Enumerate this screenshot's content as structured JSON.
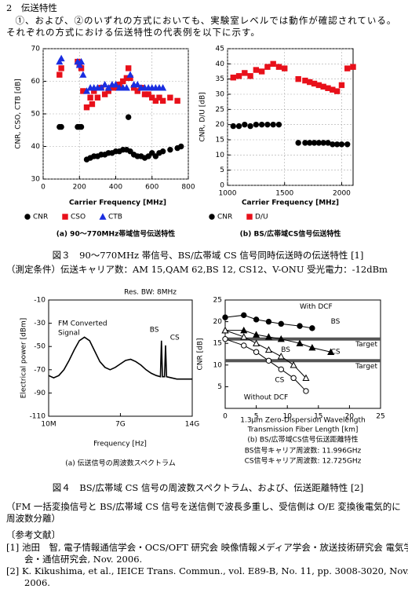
{
  "header": {
    "section": "2　伝送特性",
    "paragraph": "①、および、②のいずれの方式においても、実験室レベルでは動作が確認されている。それぞれの方式における伝送特性の代表例を以下に示す。"
  },
  "chart_data": [
    {
      "type": "scatter",
      "caption": "(a) 90〜770MHz帯域信号伝送特性",
      "xlabel": "Carrier Frequency [MHz]",
      "ylabel": "CNR, CSO, CTB [dB]",
      "xlim": [
        0,
        800
      ],
      "ylim": [
        30,
        70
      ],
      "xticks": [
        0,
        200,
        400,
        600,
        800
      ],
      "yticks": [
        30,
        40,
        50,
        60,
        70
      ],
      "grid": true,
      "series": [
        {
          "name": "CNR",
          "color": "#000000",
          "marker": "circle",
          "x": [
            90,
            100,
            190,
            200,
            210,
            240,
            260,
            280,
            300,
            320,
            340,
            360,
            380,
            400,
            420,
            440,
            460,
            470,
            480,
            500,
            520,
            540,
            560,
            580,
            600,
            620,
            640,
            660,
            700,
            740,
            760
          ],
          "values": [
            46,
            46,
            46,
            46,
            46,
            36,
            36.5,
            37,
            37,
            37.5,
            37.5,
            38,
            38,
            38.5,
            38.5,
            39,
            39,
            49,
            38.5,
            37.5,
            37,
            37,
            36.5,
            37,
            38,
            37,
            38,
            38.5,
            39,
            39.5,
            40
          ]
        },
        {
          "name": "CSO",
          "color": "#e8101a",
          "marker": "square",
          "x": [
            90,
            100,
            190,
            200,
            210,
            220,
            240,
            260,
            270,
            280,
            300,
            320,
            340,
            360,
            380,
            400,
            420,
            440,
            460,
            470,
            480,
            500,
            520,
            540,
            560,
            580,
            600,
            620,
            640,
            660,
            700,
            740
          ],
          "values": [
            62,
            64,
            66,
            65,
            64,
            57,
            52,
            55,
            53,
            57,
            55,
            58,
            56,
            57,
            58,
            58,
            59,
            60,
            61,
            64,
            61,
            58,
            57,
            58,
            56,
            56,
            55,
            54,
            55,
            54,
            55,
            54
          ]
        },
        {
          "name": "CTB",
          "color": "#1a2ee0",
          "marker": "triangle",
          "x": [
            90,
            100,
            190,
            200,
            210,
            220,
            240,
            260,
            280,
            300,
            320,
            340,
            360,
            380,
            400,
            420,
            440,
            460,
            480,
            500,
            520,
            540,
            560,
            580,
            600,
            620,
            640,
            660
          ],
          "values": [
            66,
            67,
            66,
            65,
            66,
            62,
            57,
            58,
            58,
            58,
            58,
            59,
            58,
            59,
            59,
            58,
            58,
            58,
            62,
            59,
            59,
            58,
            58,
            58,
            58,
            58,
            58,
            58
          ]
        }
      ]
    },
    {
      "type": "scatter",
      "caption": "(b) BS/広帯域CS信号伝送特性",
      "xlabel": "Carrier Frequency [MHz]",
      "ylabel": "CNR, D/U [dB]",
      "xlim": [
        1000,
        2100
      ],
      "ylim": [
        0,
        45
      ],
      "xticks": [
        1000,
        1500,
        2000
      ],
      "yticks": [
        0,
        5,
        10,
        15,
        20,
        25,
        30,
        35,
        40,
        45
      ],
      "grid": true,
      "series": [
        {
          "name": "CNR",
          "color": "#000000",
          "marker": "circle",
          "x": [
            1050,
            1100,
            1150,
            1200,
            1250,
            1300,
            1350,
            1400,
            1450,
            1620,
            1680,
            1720,
            1760,
            1800,
            1840,
            1880,
            1920,
            1960,
            2000,
            2050
          ],
          "values": [
            19.5,
            19.5,
            20,
            19.5,
            20,
            20,
            20,
            20,
            20,
            14,
            14,
            14,
            14,
            14,
            14,
            14,
            13.5,
            13.5,
            13.5,
            13.5
          ]
        },
        {
          "name": "D/U",
          "color": "#e8101a",
          "marker": "square",
          "x": [
            1050,
            1100,
            1150,
            1200,
            1250,
            1300,
            1350,
            1400,
            1450,
            1500,
            1620,
            1680,
            1720,
            1760,
            1800,
            1840,
            1880,
            1920,
            1960,
            2000,
            2050,
            2100
          ],
          "values": [
            35.5,
            36,
            37,
            36,
            38,
            37.5,
            39,
            40,
            39,
            38.5,
            35,
            34.5,
            34,
            33.5,
            33,
            32.5,
            32,
            31.5,
            31,
            33,
            38.5,
            39
          ]
        }
      ]
    },
    {
      "type": "line",
      "caption": "(a) 伝送信号の周波数スペクトラム",
      "xlabel": "Frequency [Hz]",
      "ylabel": "Electrical power [dBm]",
      "annotations": [
        "Res. BW: 8MHz",
        "FM Converted",
        "Signal",
        "BS",
        "CS"
      ],
      "color": "#000000",
      "xlim": [
        0.01,
        14
      ],
      "ylim": [
        -110,
        -10
      ],
      "xticks": [
        {
          "value": 0.01,
          "label": "10M"
        },
        {
          "value": 7,
          "label": "7G"
        },
        {
          "value": 14,
          "label": "14G"
        }
      ],
      "yticks": [
        -10,
        -30,
        -50,
        -70,
        -90,
        -110
      ],
      "x": [
        0.01,
        0.5,
        1,
        1.5,
        2,
        2.5,
        3,
        3.5,
        4,
        4.5,
        5,
        5.5,
        6,
        6.5,
        7,
        7.5,
        8,
        8.5,
        9,
        9.5,
        10,
        10.5,
        10.9,
        11,
        11.1,
        11.3,
        11.4,
        11.5,
        12,
        12.5,
        13,
        13.5,
        14
      ],
      "values": [
        -75,
        -77,
        -75,
        -70,
        -62,
        -53,
        -45,
        -42,
        -45,
        -54,
        -63,
        -68,
        -70,
        -68,
        -65,
        -62,
        -61,
        -63,
        -66,
        -70,
        -73,
        -75,
        -76,
        -45,
        -76,
        -76,
        -49,
        -76,
        -77,
        -78,
        -78,
        -78,
        -78
      ]
    },
    {
      "type": "scatter",
      "caption": "(b) BS/広帯域CS信号伝送距離特性",
      "notes": [
        "BS信号キャリア周波数: 11.996GHz",
        "CS信号キャリア周波数: 12.725GHz"
      ],
      "xlabel": [
        "1.3μm Zero-Dispersion Wavelength",
        "Transmission Fiber Length [km]"
      ],
      "ylabel": "CNR [dB]",
      "annotations": [
        "With DCF",
        "BS",
        "CS",
        "BS",
        "CS",
        "Without DCF",
        "Target",
        "Target"
      ],
      "target_lines": [
        16,
        11
      ],
      "lines": true,
      "xlim": [
        0,
        25
      ],
      "ylim": [
        0,
        25
      ],
      "xticks": [
        0,
        5,
        10,
        15,
        20,
        25
      ],
      "yticks": [
        5,
        10,
        15,
        20,
        25
      ],
      "series": [
        {
          "color": "#000000",
          "marker": "circle",
          "x": [
            0,
            3,
            5,
            7,
            9,
            12,
            14
          ],
          "values": [
            21,
            21.5,
            20.5,
            20,
            19.5,
            19,
            18.5
          ]
        },
        {
          "color": "#000000",
          "marker": "triangle",
          "x": [
            0,
            3,
            5,
            7,
            9,
            12,
            14,
            17
          ],
          "values": [
            18,
            18,
            17,
            16.5,
            16,
            15,
            14,
            13
          ]
        },
        {
          "color": "#000000",
          "marker": "open-triangle",
          "x": [
            0,
            3,
            5,
            7,
            9,
            11,
            13
          ],
          "values": [
            18,
            16.5,
            15,
            13.5,
            12,
            10,
            7
          ]
        },
        {
          "color": "#000000",
          "marker": "open-circle",
          "x": [
            0,
            3,
            5,
            7,
            9,
            11,
            13
          ],
          "values": [
            16,
            14.5,
            13,
            11,
            9,
            7,
            4
          ]
        }
      ]
    }
  ],
  "figure3": {
    "caption": "図３　90〜770MHz 帯信号、BS/広帯域 CS 信号同時伝送時の伝送特性 [1]",
    "condition": "（測定条件）伝送キャリア数：AM 15,QAM 62,BS 12, CS12、V-ONU 受光電力：-12dBm"
  },
  "figure4": {
    "caption": "図４　BS/広帯域 CS 信号の周波数スペクトラム、および、伝送距離特性 [2]",
    "note": "（FM 一括変換信号と BS/広帯域 CS 信号を送信側で波長多重し、受信側は O/E 変換後電気的に周波数分離）"
  },
  "references": {
    "title": "〔参考文献〕",
    "items": [
      "[1] 池田　智, 電子情報通信学会・OCS/OFT 研究会 映像情報メディア学会・放送技術研究会 電気学会・通信研究会, Nov. 2006.",
      "[2] K. Kikushima, et al., IEICE Trans. Commun., vol. E89-B, No. 11, pp. 3008-3020, Nov. 2006."
    ]
  }
}
